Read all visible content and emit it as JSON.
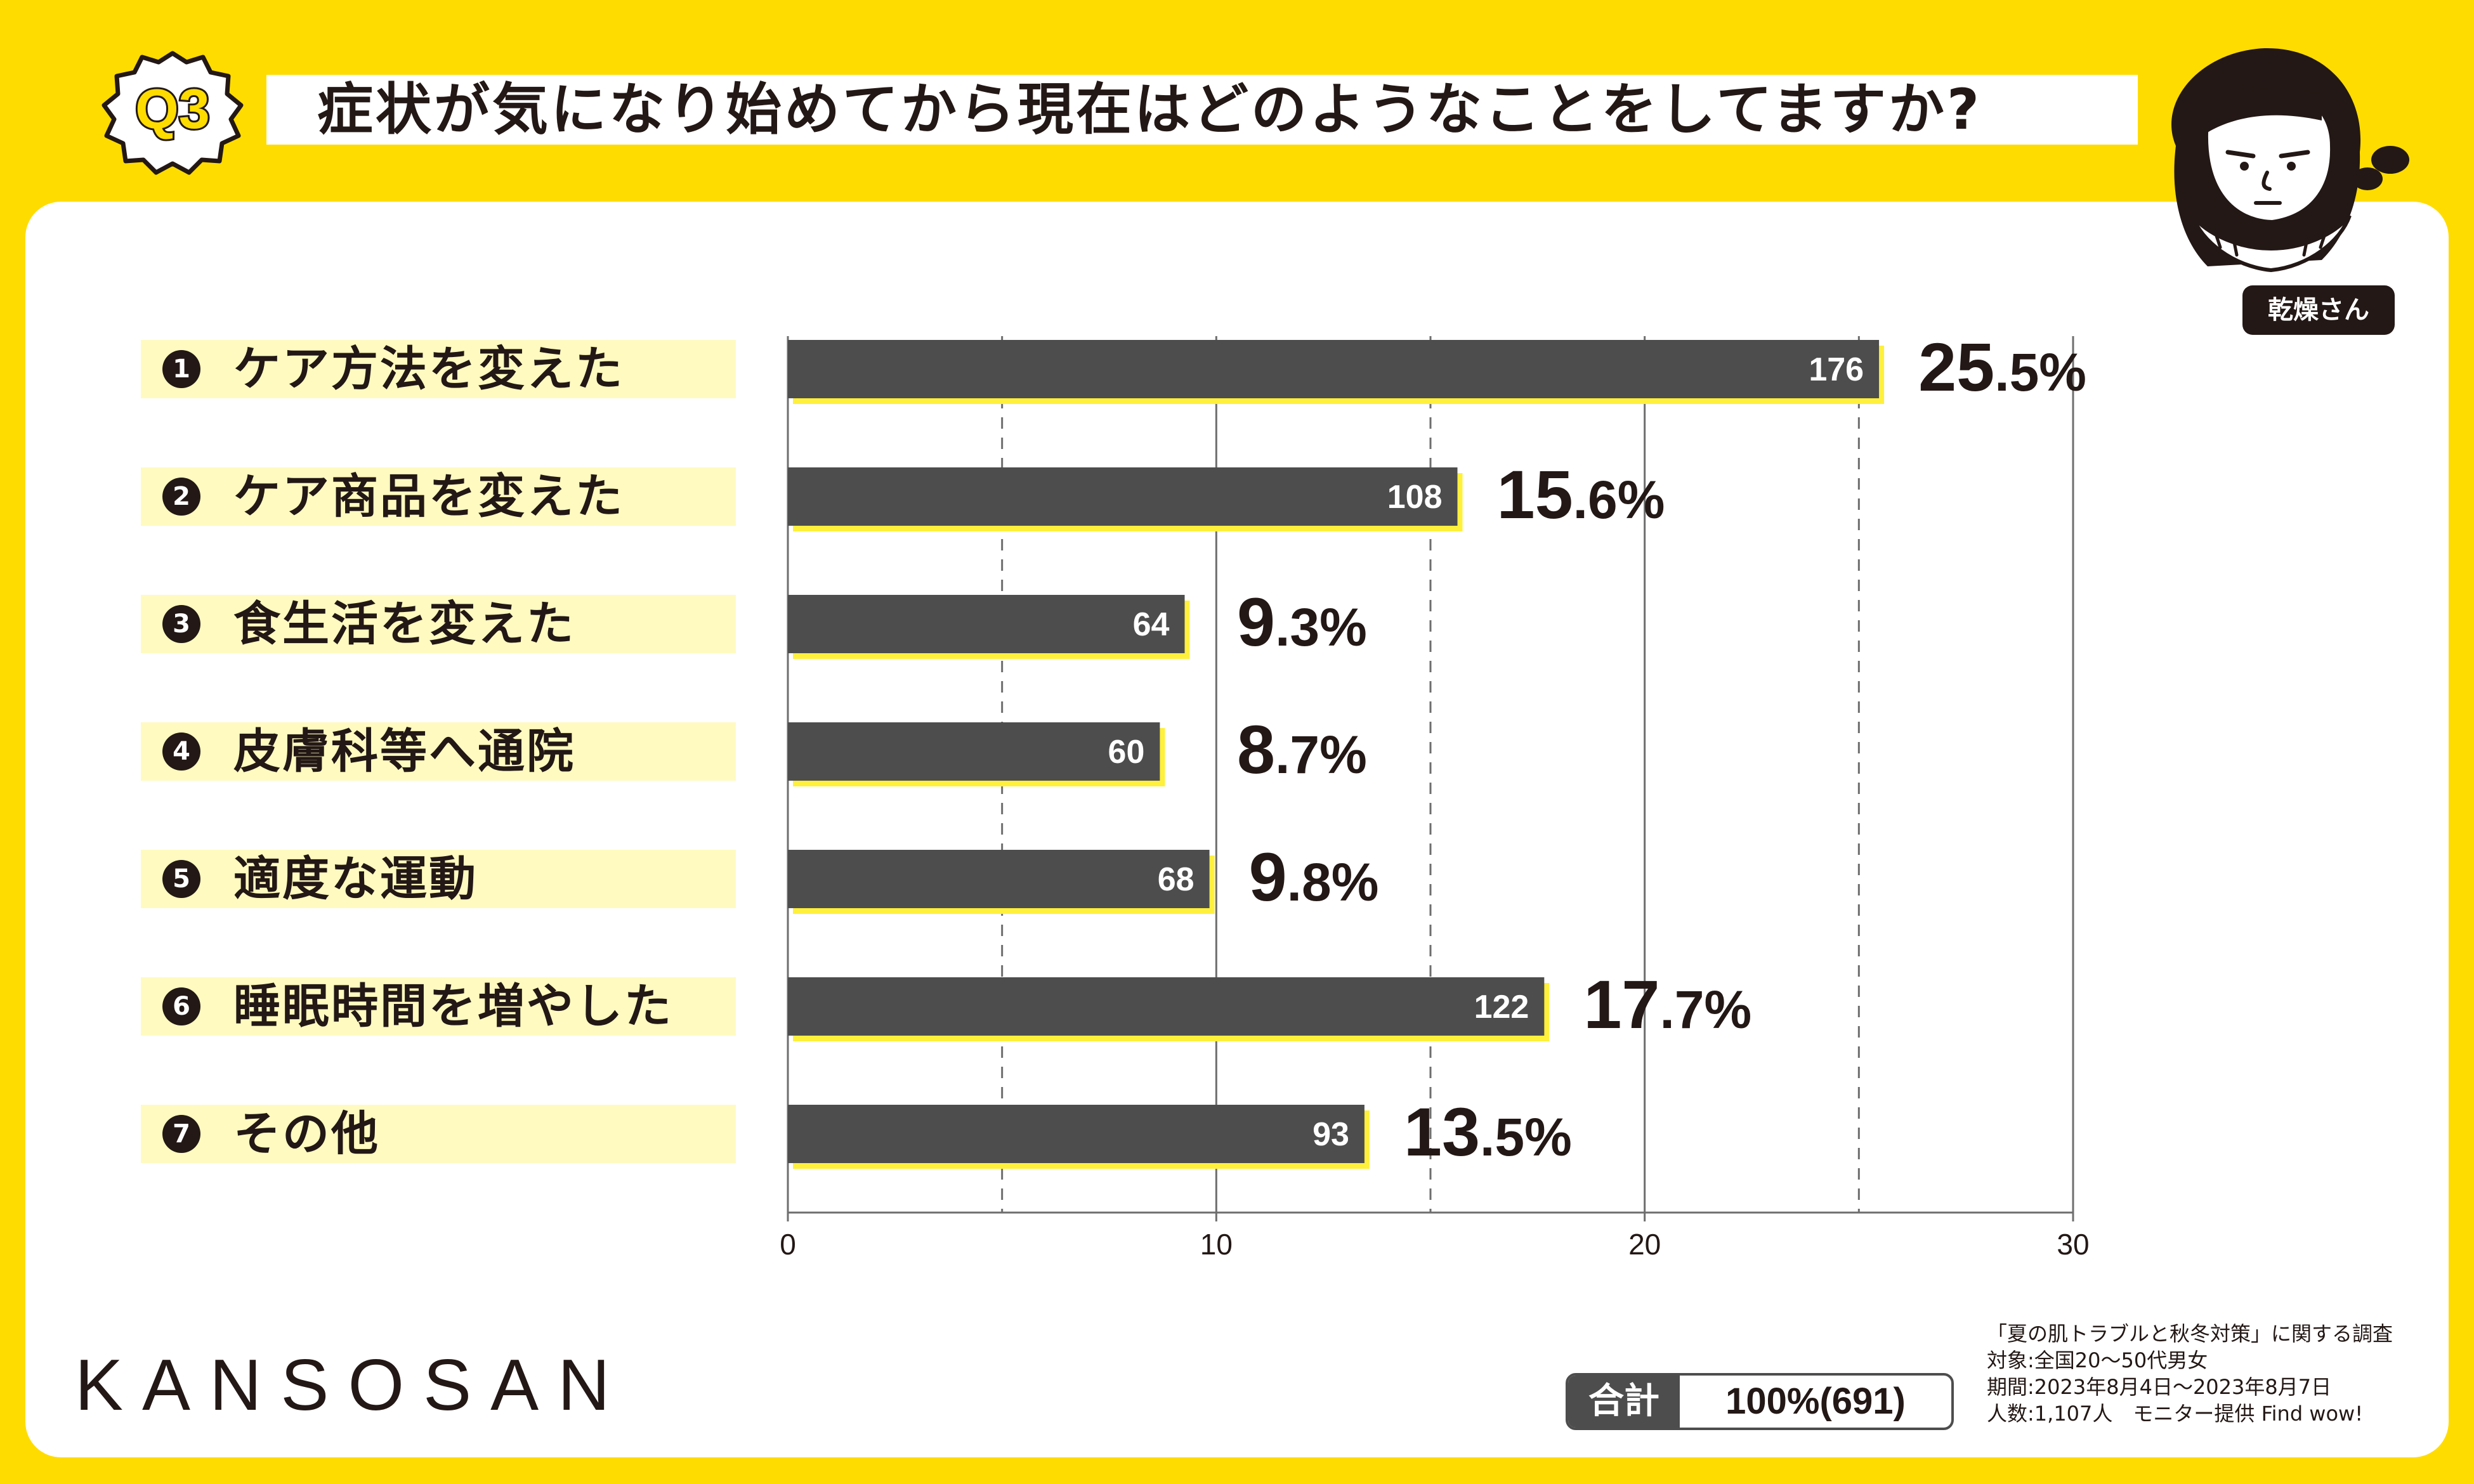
{
  "question": {
    "badge": "Q3",
    "title": "症状が気になり始めてから現在はどのようなことをしてますか?"
  },
  "character": {
    "name": "乾燥さん",
    "icon": "worried-woman-icon"
  },
  "chart_data": {
    "type": "bar",
    "orientation": "horizontal",
    "categories": [
      {
        "num": "1",
        "label": "ケア方法を変えた"
      },
      {
        "num": "2",
        "label": "ケア商品を変えた"
      },
      {
        "num": "3",
        "label": "食生活を変えた"
      },
      {
        "num": "4",
        "label": "皮膚科等へ通院"
      },
      {
        "num": "5",
        "label": "適度な運動"
      },
      {
        "num": "6",
        "label": "睡眠時間を増やした"
      },
      {
        "num": "7",
        "label": "その他"
      }
    ],
    "values": [
      176,
      108,
      64,
      60,
      68,
      122,
      93
    ],
    "percent_int": [
      "25",
      "15",
      "9",
      "8",
      "9",
      "17",
      "13"
    ],
    "percent_frac": [
      ".5%",
      ".6%",
      ".3%",
      ".7%",
      ".8%",
      ".7%",
      ".5%"
    ],
    "xlim": [
      0,
      30
    ],
    "xticks": [
      0,
      10,
      20,
      30
    ],
    "grid": true,
    "colors": {
      "bar": "#4d4d4d",
      "bar_shadow": "#fff03c",
      "label_bg": "#fffac0"
    }
  },
  "footer": {
    "brand": "KANSOSAN",
    "total_label": "合計",
    "total_value": "100%(691)",
    "notes": [
      "「夏の肌トラブルと秋冬対策」に関する調査",
      "対象:全国20〜50代男女",
      "期間:2023年8月4日〜2023年8月7日",
      "人数:1,107人　モニター提供 Find wow!"
    ]
  },
  "colors": {
    "background": "#ffdc00",
    "card": "#ffffff",
    "ink": "#231815"
  }
}
